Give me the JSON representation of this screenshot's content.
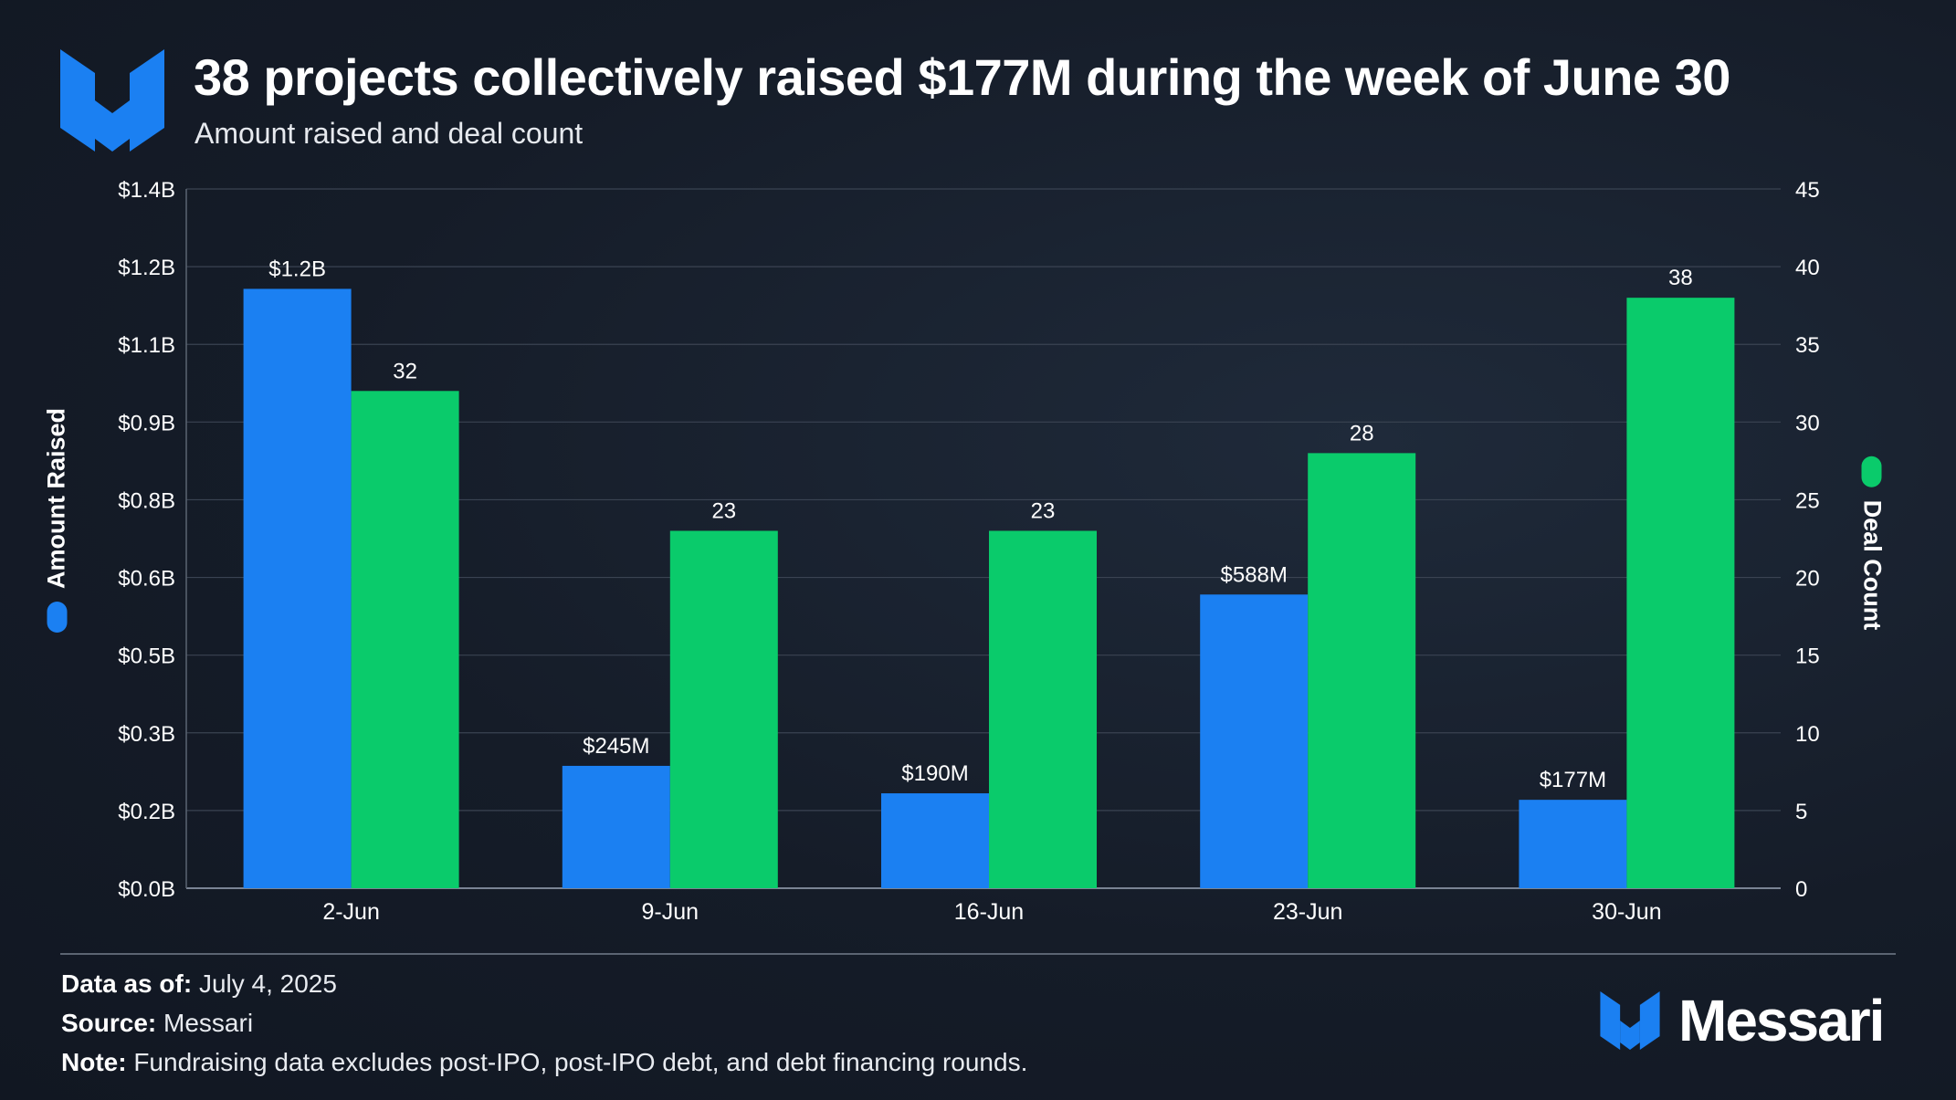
{
  "header": {
    "title": "38 projects collectively raised $177M during the week of June 30",
    "subtitle": "Amount raised and deal count"
  },
  "colors": {
    "amount": "#1b80f2",
    "deals": "#0acb6b",
    "background": "#161d29",
    "grid": "#3a4352"
  },
  "chart_data": {
    "type": "bar",
    "categories": [
      "2-Jun",
      "9-Jun",
      "16-Jun",
      "23-Jun",
      "30-Jun"
    ],
    "series": [
      {
        "name": "Amount Raised",
        "axis": "left",
        "values": [
          1.2,
          0.245,
          0.19,
          0.588,
          0.177
        ],
        "labels": [
          "$1.2B",
          "$245M",
          "$190M",
          "$588M",
          "$177M"
        ]
      },
      {
        "name": "Deal Count",
        "axis": "right",
        "values": [
          32,
          23,
          23,
          28,
          38
        ],
        "labels": [
          "32",
          "23",
          "23",
          "28",
          "38"
        ]
      }
    ],
    "y_left": {
      "label": "Amount Raised",
      "ylim": [
        0,
        1.4
      ],
      "ticks": [
        "$0.0B",
        "$0.2B",
        "$0.3B",
        "$0.5B",
        "$0.6B",
        "$0.8B",
        "$0.9B",
        "$1.1B",
        "$1.2B",
        "$1.4B"
      ]
    },
    "y_right": {
      "label": "Deal Count",
      "ylim": [
        0,
        45
      ],
      "ticks": [
        "0",
        "5",
        "10",
        "15",
        "20",
        "25",
        "30",
        "35",
        "40",
        "45"
      ]
    },
    "grid": true
  },
  "footer": {
    "data_as_of_label": "Data as of:",
    "data_as_of_value": "July 4, 2025",
    "source_label": "Source:",
    "source_value": "Messari",
    "note_label": "Note:",
    "note_value": "Fundraising data excludes post-IPO, post-IPO debt, and debt financing rounds."
  },
  "brand": {
    "name": "Messari"
  }
}
